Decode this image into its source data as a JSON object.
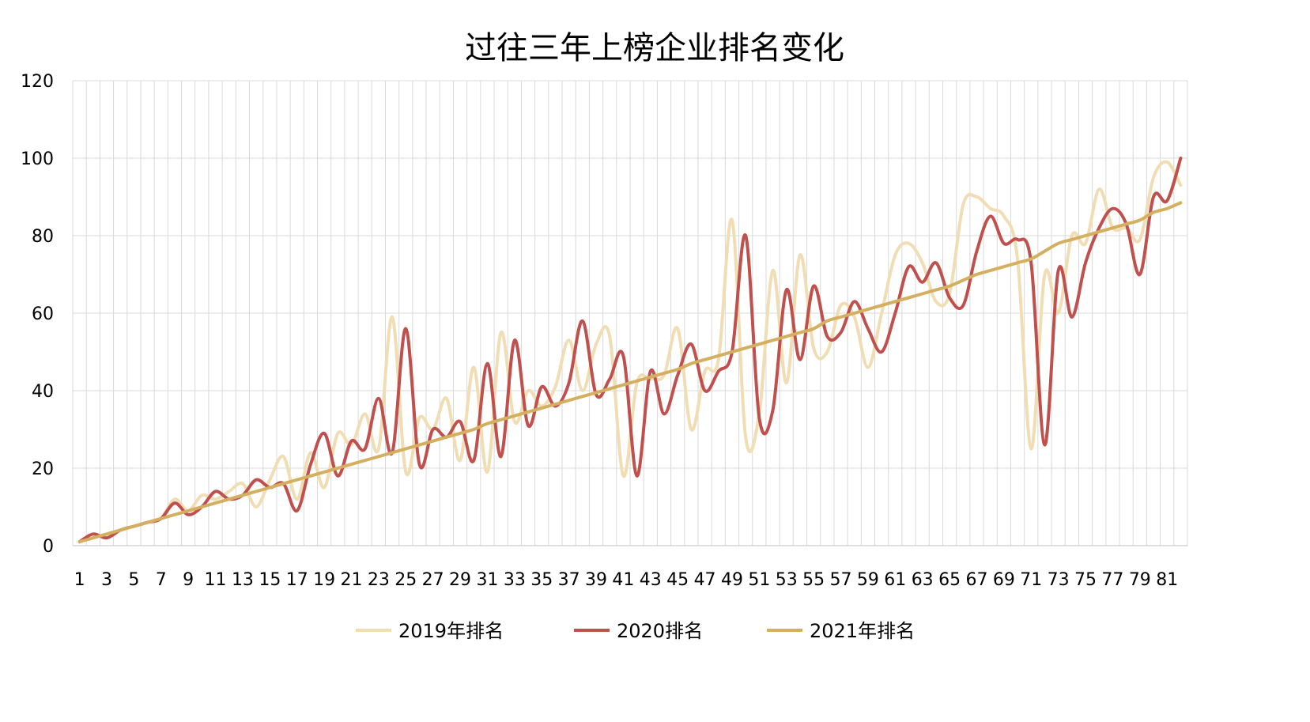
{
  "chart_data": {
    "type": "line",
    "title": "过往三年上榜企业排名变化",
    "xlabel": "",
    "ylabel": "",
    "ylim": [
      0,
      120
    ],
    "yticks": [
      0,
      20,
      40,
      60,
      80,
      100,
      120
    ],
    "categories": [
      1,
      2,
      3,
      4,
      5,
      6,
      7,
      8,
      9,
      10,
      11,
      12,
      13,
      14,
      15,
      16,
      17,
      18,
      19,
      20,
      21,
      22,
      23,
      24,
      25,
      26,
      27,
      28,
      29,
      30,
      31,
      32,
      33,
      34,
      35,
      36,
      37,
      38,
      39,
      40,
      41,
      42,
      43,
      44,
      45,
      46,
      47,
      48,
      49,
      50,
      51,
      52,
      53,
      54,
      55,
      56,
      57,
      58,
      59,
      60,
      61,
      62,
      63,
      64,
      65,
      66,
      67,
      68,
      69,
      70,
      71,
      72,
      73,
      74,
      75,
      76,
      77,
      78,
      79,
      80,
      81,
      82
    ],
    "xtick_labels": [
      "1",
      "3",
      "5",
      "7",
      "9",
      "11",
      "13",
      "15",
      "17",
      "19",
      "21",
      "23",
      "25",
      "27",
      "29",
      "31",
      "33",
      "35",
      "37",
      "39",
      "41",
      "43",
      "45",
      "47",
      "49",
      "51",
      "53",
      "55",
      "57",
      "59",
      "61",
      "63",
      "65",
      "67",
      "69",
      "71",
      "73",
      "75",
      "77",
      "79",
      "81"
    ],
    "grid": true,
    "legend_position": "bottom",
    "series": [
      {
        "name": "2019年排名",
        "color": "#F0DDB4",
        "values": [
          1,
          2,
          3,
          4,
          5,
          6,
          7,
          12,
          9,
          13,
          12,
          14,
          16,
          10,
          17,
          23,
          12,
          24,
          15,
          29,
          26,
          34,
          25,
          59,
          19,
          33,
          30,
          38,
          22,
          46,
          19,
          55,
          32,
          40,
          36,
          41,
          53,
          40,
          52,
          54,
          18,
          42,
          43,
          44,
          56,
          30,
          45,
          48,
          84,
          28,
          34,
          71,
          42,
          75,
          51,
          50,
          62,
          59,
          46,
          60,
          75,
          78,
          73,
          63,
          65,
          88,
          90,
          87,
          85,
          74,
          25,
          70,
          60,
          80,
          78,
          92,
          82,
          82,
          79,
          95,
          99,
          93
        ]
      },
      {
        "name": "2020排名",
        "color": "#C0504D",
        "values": [
          1,
          3,
          2,
          4,
          5,
          6,
          7,
          11,
          8,
          10,
          14,
          12,
          13,
          17,
          15,
          16,
          9,
          21,
          29,
          18,
          27,
          25,
          38,
          24,
          56,
          21,
          30,
          28,
          32,
          22,
          47,
          23,
          53,
          31,
          41,
          36,
          42,
          58,
          39,
          43,
          49,
          18,
          45,
          34,
          44,
          52,
          40,
          45,
          50,
          80,
          33,
          35,
          66,
          48,
          67,
          54,
          55,
          63,
          56,
          50,
          60,
          72,
          68,
          73,
          64,
          62,
          76,
          85,
          78,
          79,
          73,
          26,
          71,
          59,
          73,
          82,
          87,
          83,
          70,
          90,
          89,
          100
        ]
      },
      {
        "name": "2021年排名",
        "color": "#D4AF5F",
        "values": [
          1,
          2,
          3,
          4,
          5,
          6,
          7,
          8,
          9,
          10,
          11,
          12,
          13,
          14,
          15,
          16,
          17,
          18,
          19,
          20,
          21,
          22,
          23,
          24,
          25,
          26,
          27,
          28,
          29,
          30,
          31.5,
          32.5,
          33.5,
          34.5,
          35.5,
          36.5,
          37.5,
          38.5,
          39.5,
          40.5,
          41.5,
          42.5,
          43.5,
          44.5,
          45.5,
          47,
          48,
          49,
          50,
          51,
          52,
          53,
          54,
          55,
          56,
          58,
          59,
          60,
          61,
          62,
          63,
          64,
          65,
          66,
          67,
          68.5,
          70,
          71,
          72,
          73,
          74,
          76,
          78,
          79,
          80,
          81,
          82,
          83,
          84,
          86,
          87,
          88.5
        ]
      }
    ]
  }
}
